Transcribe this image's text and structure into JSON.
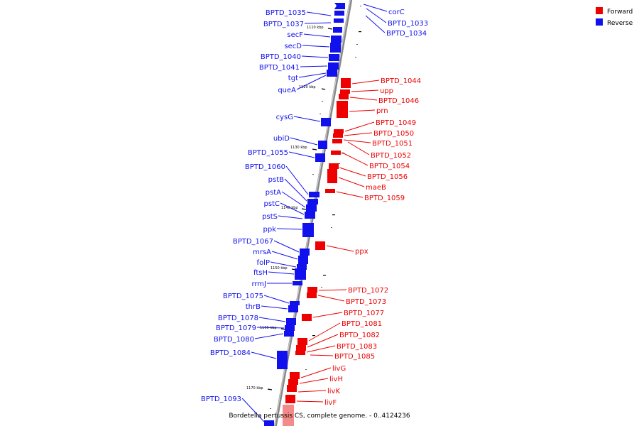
{
  "legend": [
    {
      "label": "Forward",
      "color": "#ee0000"
    },
    {
      "label": "Reverse",
      "color": "#1111ee"
    }
  ],
  "caption": "Bordetella pertussis CS, complete genome. - 0..4124236",
  "ticks": [
    "1110 kbp",
    "1120 kbp",
    "1130 kbp",
    "1140 kbp",
    "1150 kbp",
    "1160 kbp",
    "1170 kbp"
  ],
  "genes": {
    "reverse": [
      "BPTD_1035",
      "BPTD_1037",
      "secF",
      "secD",
      "BPTD_1040",
      "BPTD_1041",
      "tgt",
      "queA",
      "cysG",
      "ubiD",
      "BPTD_1055",
      "BPTD_1060",
      "pstB",
      "pstA",
      "pstC",
      "pstS",
      "ppk",
      "BPTD_1067",
      "mrsA",
      "folP",
      "ftsH",
      "rrmJ",
      "BPTD_1075",
      "thrB",
      "BPTD_1078",
      "BPTD_1079",
      "BPTD_1080",
      "BPTD_1084",
      "BPTD_1093"
    ],
    "forward": [
      "corC",
      "BPTD_1033",
      "BPTD_1034",
      "BPTD_1044",
      "upp",
      "BPTD_1046",
      "prn",
      "BPTD_1049",
      "BPTD_1050",
      "BPTD_1051",
      "BPTD_1052",
      "BPTD_1054",
      "BPTD_1056",
      "maeB",
      "BPTD_1059",
      "ppx",
      "BPTD_1072",
      "BPTD_1073",
      "BPTD_1077",
      "BPTD_1081",
      "BPTD_1082",
      "BPTD_1083",
      "BPTD_1085",
      "livG",
      "livH",
      "livK",
      "livF"
    ]
  }
}
